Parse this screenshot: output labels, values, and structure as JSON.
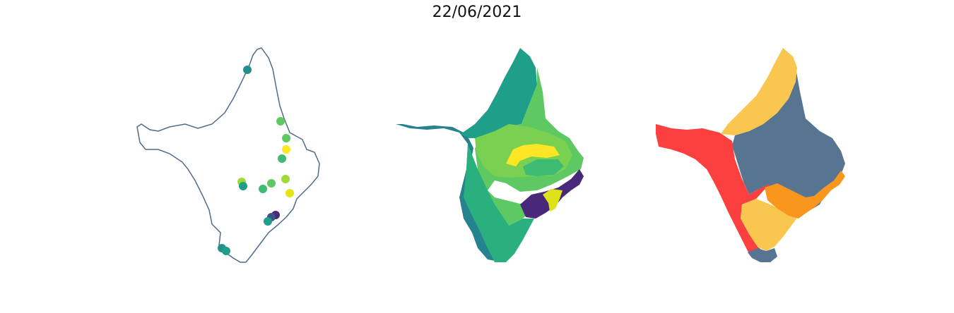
{
  "figure": {
    "title": "22/06/2021"
  },
  "panels": [
    {
      "kind": "stations",
      "outline_color": "#4f6b8a",
      "points_lonlat_note": "",
      "stations": [
        {
          "color": "#21908d"
        },
        {
          "color": "#5ec962"
        },
        {
          "color": "#5ec962"
        },
        {
          "color": "#fde725"
        },
        {
          "color": "#3fbc73"
        },
        {
          "color": "#a0da39"
        },
        {
          "color": "#1f9e89"
        },
        {
          "color": "#3fbc73"
        },
        {
          "color": "#5ec962"
        },
        {
          "color": "#a0da39"
        },
        {
          "color": "#e5e419"
        },
        {
          "color": "#482878"
        },
        {
          "color": "#3b528b"
        },
        {
          "color": "#1f9e89"
        },
        {
          "color": "#21908d"
        },
        {
          "color": "#1f9e89"
        }
      ]
    },
    {
      "kind": "interpolated-regions",
      "colors": [
        "#26828e",
        "#1f9e89",
        "#2ab07f",
        "#5ec962",
        "#7ad151",
        "#fde725",
        "#440154",
        "#482878",
        "#dde318"
      ]
    },
    {
      "kind": "zones",
      "colors": [
        "#fc4040",
        "#f9c74f",
        "#577590",
        "#f8961e"
      ]
    }
  ]
}
